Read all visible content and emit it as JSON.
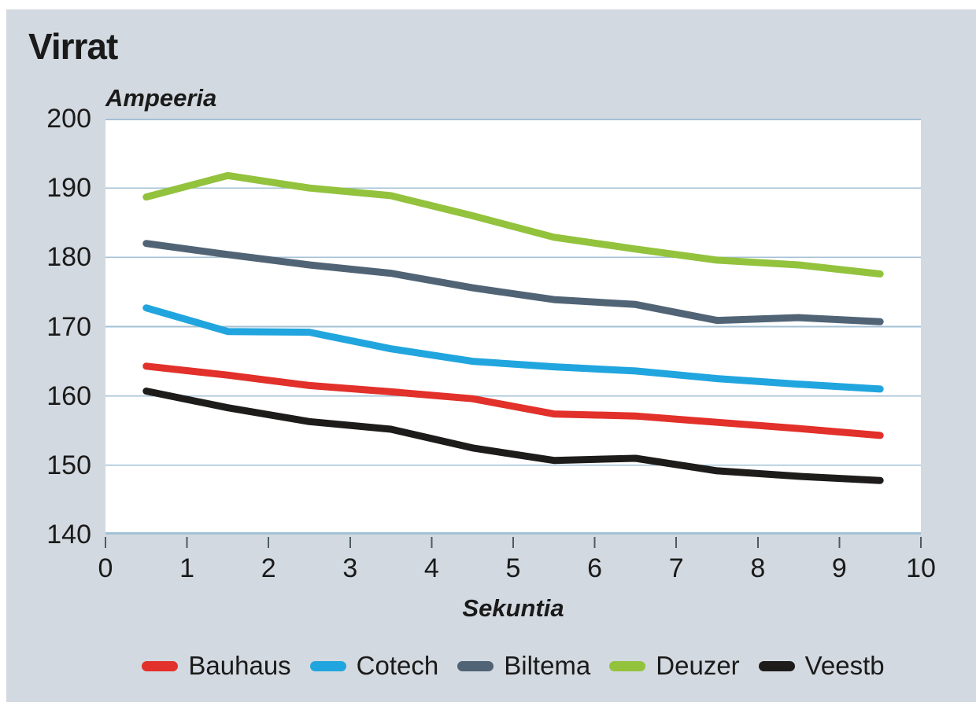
{
  "title": "Virrat",
  "chart_data": {
    "type": "line",
    "title": "Virrat",
    "ylabel": "Ampeeria",
    "xlabel": "Sekuntia",
    "x": [
      0.5,
      1.5,
      2.5,
      3.5,
      4.5,
      5.5,
      6.5,
      7.5,
      8.5,
      9.5
    ],
    "series": [
      {
        "name": "Bauhaus",
        "color": "#e2302a",
        "values": [
          164.3,
          163.0,
          161.5,
          160.6,
          159.6,
          157.4,
          157.1,
          156.2,
          155.3,
          154.3
        ]
      },
      {
        "name": "Cotech",
        "color": "#21a5de",
        "values": [
          172.7,
          169.3,
          169.2,
          166.8,
          165.0,
          164.2,
          163.6,
          162.5,
          161.7,
          161.0
        ]
      },
      {
        "name": "Biltema",
        "color": "#516476",
        "values": [
          182.0,
          180.4,
          178.9,
          177.7,
          175.6,
          173.9,
          173.2,
          170.9,
          171.3,
          170.7
        ]
      },
      {
        "name": "Deuzer",
        "color": "#93c23d",
        "values": [
          188.7,
          191.8,
          190.0,
          188.9,
          186.0,
          182.9,
          181.2,
          179.6,
          178.9,
          177.6
        ]
      },
      {
        "name": "Veestb",
        "color": "#1e1b1b",
        "values": [
          160.7,
          158.3,
          156.3,
          155.2,
          152.5,
          150.7,
          151.0,
          149.2,
          148.4,
          147.8
        ]
      }
    ],
    "xlim": [
      0,
      10
    ],
    "ylim": [
      140,
      200
    ],
    "x_ticks": [
      "0",
      "1",
      "2",
      "3",
      "4",
      "5",
      "6",
      "7",
      "8",
      "9",
      "10"
    ],
    "y_ticks": [
      "140",
      "150",
      "160",
      "170",
      "180",
      "190",
      "200"
    ],
    "grid": "horizontal",
    "legend_position": "bottom"
  },
  "colors": {
    "panel": "#d3d9e0",
    "plot_background": "#ffffff",
    "gridline": "#a3c1d5",
    "axis_tick": "#4d5a64",
    "text": "#1a1a1a"
  }
}
